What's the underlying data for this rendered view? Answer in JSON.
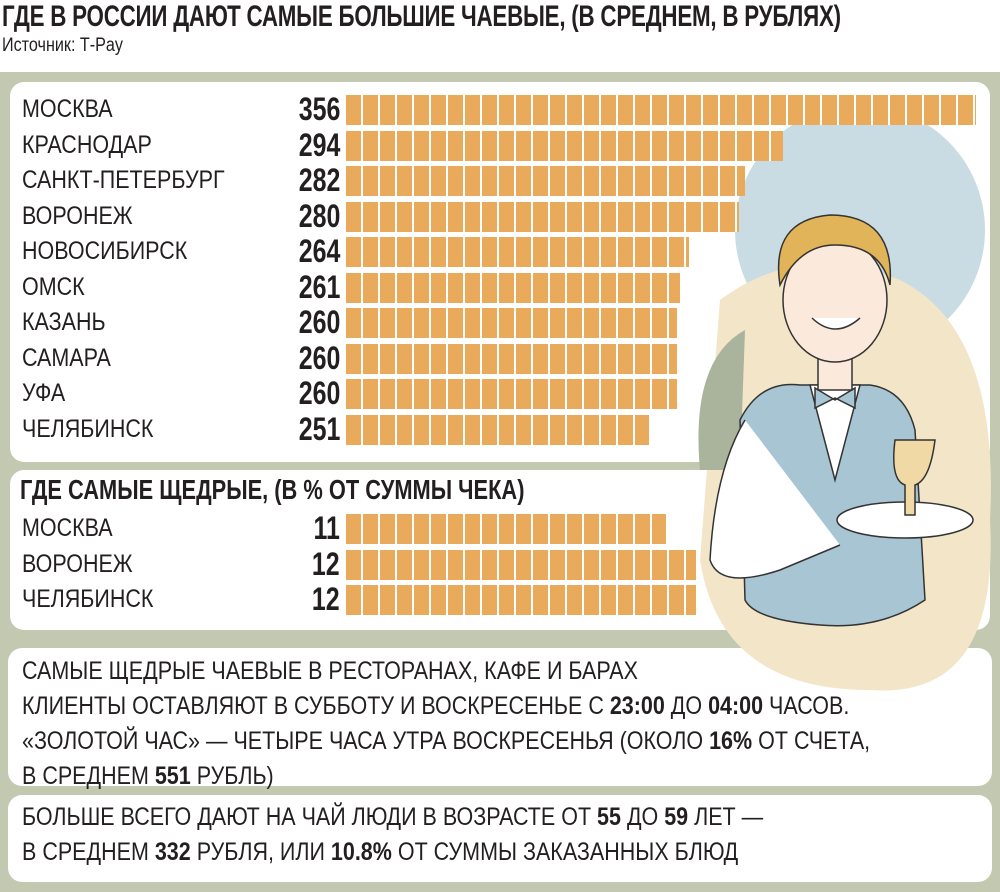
{
  "title": "ГДЕ В РОССИИ ДАЮТ САМЫЕ БОЛЬШИЕ  ЧАЕВЫЕ, (В СРЕДНЕМ, В  РУБЛЯХ)",
  "source": "Источник: Т-Pay",
  "chart_data": [
    {
      "type": "bar",
      "title": "ГДЕ В РОССИИ ДАЮТ САМЫЕ БОЛЬШИЕ  ЧАЕВЫЕ, (В СРЕДНЕМ, В  РУБЛЯХ)",
      "unit": "руб.",
      "categories": [
        "МОСКВА",
        "КРАСНОДАР",
        "САНКТ-ПЕТЕРБУРГ",
        "ВОРОНЕЖ",
        "НОВОСИБИРСК",
        "ОМСК",
        "КАЗАНЬ",
        "САМАРА",
        "УФА",
        "ЧЕЛЯБИНСК"
      ],
      "values": [
        356,
        294,
        282,
        280,
        264,
        261,
        260,
        260,
        260,
        251
      ],
      "values_text": [
        "356",
        "294",
        "282",
        "280",
        "264",
        "261",
        "260",
        "260",
        "260",
        "251"
      ],
      "orientation": "horizontal",
      "color": "#e9aa5c"
    },
    {
      "type": "bar",
      "title": "ГДЕ САМЫЕ ЩЕДРЫЕ, (В % ОТ СУММЫ ЧЕКА)",
      "unit": "%",
      "categories": [
        "МОСКВА",
        "ВОРОНЕЖ",
        "ЧЕЛЯБИНСК"
      ],
      "values": [
        11,
        12,
        12
      ],
      "values_text": [
        "11",
        "12",
        "12"
      ],
      "orientation": "horizontal",
      "color": "#e9aa5c"
    }
  ],
  "notes": [
    [
      [
        {
          "t": "САМЫЕ ЩЕДРЫЕ ЧАЕВЫЕ В РЕСТОРАНАХ, КАФЕ И БАРАХ"
        }
      ],
      [
        {
          "t": "КЛИЕНТЫ ОСТАВЛЯЮТ В СУББОТУ И ВОСКРЕСЕНЬЕ С "
        },
        {
          "t": "23:00",
          "b": true
        },
        {
          "t": " ДО "
        },
        {
          "t": "04:00",
          "b": true
        },
        {
          "t": " ЧАСОВ."
        }
      ],
      [
        {
          "t": "«ЗОЛОТОЙ ЧАС» — ЧЕТЫРЕ ЧАСА УТРА ВОСКРЕСЕНЬЯ (ОКОЛО "
        },
        {
          "t": "16%",
          "b": true
        },
        {
          "t": " ОТ СЧЕТА,"
        }
      ],
      [
        {
          "t": "В СРЕДНЕМ "
        },
        {
          "t": "551",
          "b": true
        },
        {
          "t": " РУБЛЬ)"
        }
      ]
    ],
    [
      [
        {
          "t": "БОЛЬШЕ ВСЕГО ДАЮТ НА ЧАЙ ЛЮДИ В ВОЗРАСТЕ ОТ "
        },
        {
          "t": "55",
          "b": true
        },
        {
          "t": " ДО "
        },
        {
          "t": "59",
          "b": true
        },
        {
          "t": " ЛЕТ —"
        }
      ],
      [
        {
          "t": "В СРЕДНЕМ "
        },
        {
          "t": "332",
          "b": true
        },
        {
          "t": " РУБЛЯ, ИЛИ "
        },
        {
          "t": "10.8%",
          "b": true
        },
        {
          "t": " ОТ СУММЫ ЗАКАЗАННЫХ БЛЮД"
        }
      ]
    ]
  ]
}
